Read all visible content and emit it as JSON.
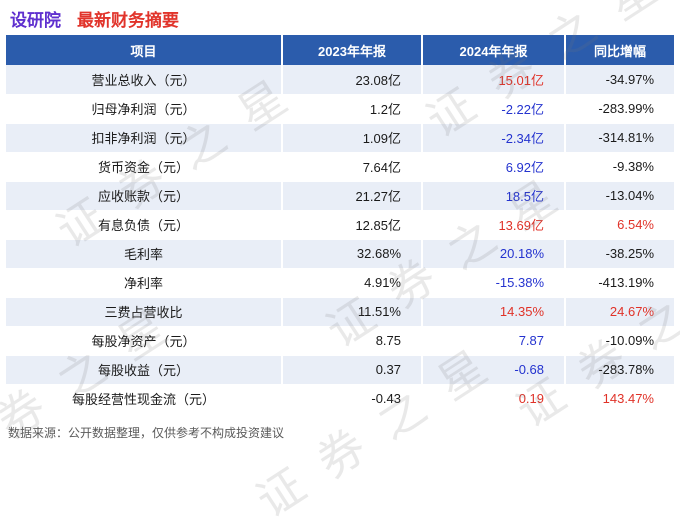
{
  "header": {
    "stock_name": "设研院",
    "report_title": "最新财务摘要"
  },
  "watermark": {
    "text": "证券之星"
  },
  "chart_data": {
    "type": "table",
    "title": "设研院 最新财务摘要",
    "columns": [
      "项目",
      "2023年年报",
      "2024年年报",
      "同比增幅"
    ],
    "rows": [
      {
        "item": "营业总收入（元）",
        "y2023": "23.08亿",
        "y2024": "15.01亿",
        "yoy": "-34.97%",
        "c2024": "red",
        "cyoy": "black"
      },
      {
        "item": "归母净利润（元）",
        "y2023": "1.2亿",
        "y2024": "-2.22亿",
        "yoy": "-283.99%",
        "c2024": "blue",
        "cyoy": "black"
      },
      {
        "item": "扣非净利润（元）",
        "y2023": "1.09亿",
        "y2024": "-2.34亿",
        "yoy": "-314.81%",
        "c2024": "blue",
        "cyoy": "black"
      },
      {
        "item": "货币资金（元）",
        "y2023": "7.64亿",
        "y2024": "6.92亿",
        "yoy": "-9.38%",
        "c2024": "blue",
        "cyoy": "black"
      },
      {
        "item": "应收账款（元）",
        "y2023": "21.27亿",
        "y2024": "18.5亿",
        "yoy": "-13.04%",
        "c2024": "blue",
        "cyoy": "black"
      },
      {
        "item": "有息负债（元）",
        "y2023": "12.85亿",
        "y2024": "13.69亿",
        "yoy": "6.54%",
        "c2024": "red",
        "cyoy": "red"
      },
      {
        "item": "毛利率",
        "y2023": "32.68%",
        "y2024": "20.18%",
        "yoy": "-38.25%",
        "c2024": "blue",
        "cyoy": "black"
      },
      {
        "item": "净利率",
        "y2023": "4.91%",
        "y2024": "-15.38%",
        "yoy": "-413.19%",
        "c2024": "blue",
        "cyoy": "black"
      },
      {
        "item": "三费占营收比",
        "y2023": "11.51%",
        "y2024": "14.35%",
        "yoy": "24.67%",
        "c2024": "red",
        "cyoy": "red"
      },
      {
        "item": "每股净资产（元）",
        "y2023": "8.75",
        "y2024": "7.87",
        "yoy": "-10.09%",
        "c2024": "blue",
        "cyoy": "black"
      },
      {
        "item": "每股收益（元）",
        "y2023": "0.37",
        "y2024": "-0.68",
        "yoy": "-283.78%",
        "c2024": "blue",
        "cyoy": "black"
      },
      {
        "item": "每股经营性现金流（元）",
        "y2023": "-0.43",
        "y2024": "0.19",
        "yoy": "143.47%",
        "c2024": "red",
        "cyoy": "red"
      }
    ]
  },
  "footer": {
    "note": "数据来源：公开数据整理，仅供参考不构成投资建议"
  },
  "colors": {
    "header_bg": "#2b5cac",
    "header_text": "#ffffff",
    "row_alt_bg": "#e9eef7",
    "row_bg": "#ffffff",
    "title_name_color": "#5f30cf",
    "title_rest_color": "#e1342b",
    "red": "#e03228",
    "blue": "#2433cf",
    "black": "#1a1a1a"
  }
}
